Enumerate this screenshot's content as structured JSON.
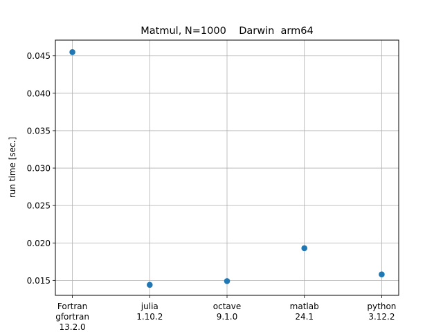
{
  "chart_data": {
    "type": "scatter",
    "title": "Matmul, N=1000    Darwin  arm64",
    "xlabel": "",
    "ylabel": "run time [sec.]",
    "categories": [
      [
        "Fortran",
        "gfortran",
        "13.2.0"
      ],
      [
        "julia",
        "1.10.2"
      ],
      [
        "octave",
        "9.1.0"
      ],
      [
        "matlab",
        "24.1"
      ],
      [
        "python",
        "3.12.2"
      ]
    ],
    "values": [
      0.0455,
      0.0144,
      0.0149,
      0.0193,
      0.0158
    ],
    "ylim": [
      0.013,
      0.0471
    ],
    "yticks": [
      "0.015",
      "0.020",
      "0.025",
      "0.030",
      "0.035",
      "0.040",
      "0.045"
    ],
    "grid": true,
    "marker_color": "#1f77b4",
    "grid_color": "#b0b0b0"
  }
}
